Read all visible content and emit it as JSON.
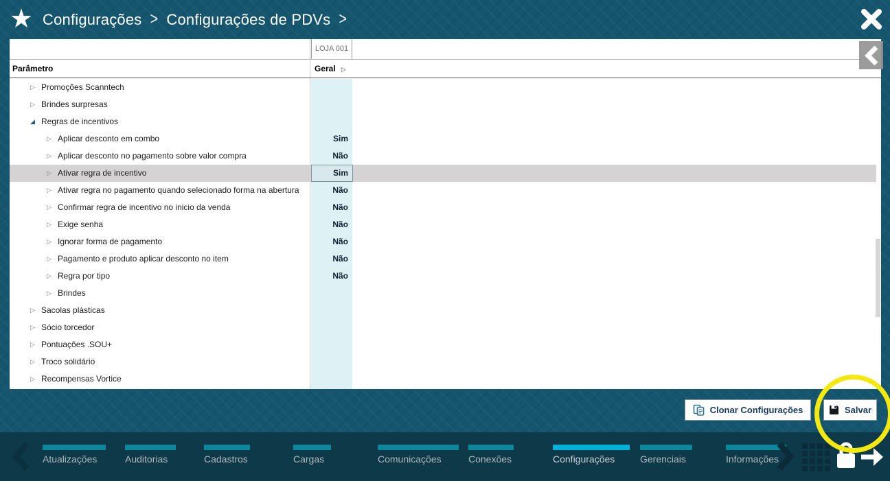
{
  "colors": {
    "header_bg": "#15566e",
    "nav_bg": "#0d3948",
    "nav_bar_inactive": "#0d879b",
    "nav_bar_active": "#00b1d8",
    "value_column_bg": "#def2f6",
    "selected_row_bg": "#d5d3d4",
    "button_text": "#17395d",
    "annotation_yellow": "#f3e911"
  },
  "titlebar": {
    "breadcrumb": [
      {
        "label": "Configurações"
      },
      {
        "label": "Configurações de PDVs"
      }
    ],
    "separator": ">"
  },
  "grid": {
    "store_header": "LOJA 001",
    "columns": {
      "parameter": "Parâmetro",
      "value_group": "Geral"
    },
    "rows": [
      {
        "label": "Promoções Scanntech",
        "level": 1,
        "state": "collapsed",
        "value": ""
      },
      {
        "label": "Brindes surpresas",
        "level": 1,
        "state": "collapsed",
        "value": ""
      },
      {
        "label": "Regras de incentivos",
        "level": 1,
        "state": "expanded",
        "value": ""
      },
      {
        "label": "Aplicar desconto em combo",
        "level": 2,
        "state": "collapsed",
        "value": "Sim"
      },
      {
        "label": "Aplicar desconto no pagamento sobre valor compra",
        "level": 2,
        "state": "collapsed",
        "value": "Não"
      },
      {
        "label": "Ativar regra de incentivo",
        "level": 2,
        "state": "collapsed",
        "value": "Sim",
        "selected": true
      },
      {
        "label": "Ativar regra no pagamento quando selecionado forma na abertura",
        "level": 2,
        "state": "collapsed",
        "value": "Não"
      },
      {
        "label": "Confirmar regra de incentivo no inicio da venda",
        "level": 2,
        "state": "collapsed",
        "value": "Não"
      },
      {
        "label": "Exige senha",
        "level": 2,
        "state": "collapsed",
        "value": "Não"
      },
      {
        "label": "Ignorar forma de pagamento",
        "level": 2,
        "state": "collapsed",
        "value": "Não"
      },
      {
        "label": "Pagamento e produto aplicar desconto no item",
        "level": 2,
        "state": "collapsed",
        "value": "Não"
      },
      {
        "label": "Regra por tipo",
        "level": 2,
        "state": "collapsed",
        "value": "Não"
      },
      {
        "label": "Brindes",
        "level": 2,
        "state": "collapsed",
        "value": ""
      },
      {
        "label": "Sacolas plásticas",
        "level": 1,
        "state": "collapsed",
        "value": ""
      },
      {
        "label": "Sócio torcedor",
        "level": 1,
        "state": "collapsed",
        "value": ""
      },
      {
        "label": "Pontuações .SOU+",
        "level": 1,
        "state": "collapsed",
        "value": ""
      },
      {
        "label": "Troco solidário",
        "level": 1,
        "state": "collapsed",
        "value": ""
      },
      {
        "label": "Recompensas Vortice",
        "level": 1,
        "state": "collapsed",
        "value": ""
      }
    ],
    "expanded_glyph": "◢",
    "collapsed_glyph": "▷",
    "sort_glyph": "▷",
    "scroll_down_glyph": "▼"
  },
  "actions": {
    "clone_button": "Clonar Configurações",
    "save_button": "Salvar"
  },
  "nav": {
    "tabs": [
      {
        "label": "Atualizações"
      },
      {
        "label": "Auditorias"
      },
      {
        "label": "Cadastros"
      },
      {
        "label": "Cargas"
      },
      {
        "label": "Comunicações"
      },
      {
        "label": "Conexões"
      },
      {
        "label": "Configurações",
        "active": true
      },
      {
        "label": "Gerenciais"
      },
      {
        "label": "Informações"
      }
    ]
  }
}
